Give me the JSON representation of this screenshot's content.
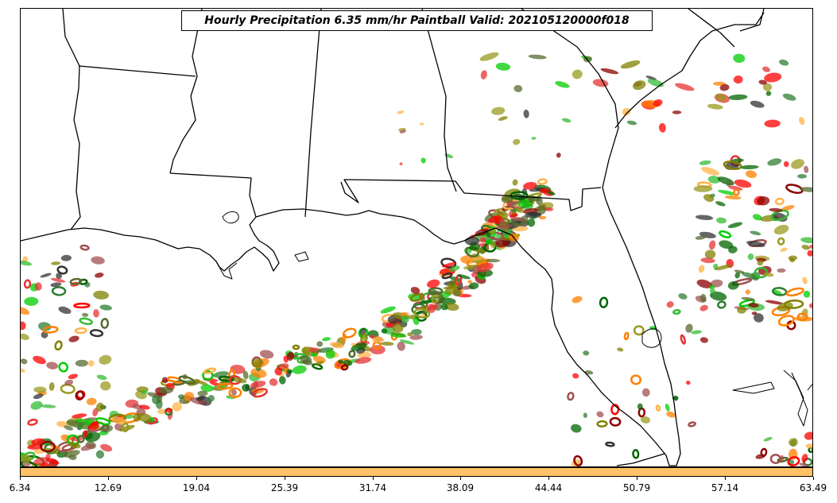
{
  "title": "Hourly Precipitation 6.35 mm/hr Paintball Valid: 202105120000f018",
  "colorbar": {
    "color": "#ffc266",
    "tick_labels": [
      "6.34",
      "12.69",
      "19.04",
      "25.39",
      "31.74",
      "38.09",
      "44.44",
      "50.79",
      "57.14",
      "63.49"
    ]
  },
  "member_colors": [
    "#ff0000",
    "#e63333",
    "#8b0000",
    "#a05050",
    "#ff8000",
    "#ffb347",
    "#00cc00",
    "#33bb33",
    "#2e7d32",
    "#006400",
    "#808000",
    "#9a9a20",
    "#556b2f",
    "#333333"
  ]
}
